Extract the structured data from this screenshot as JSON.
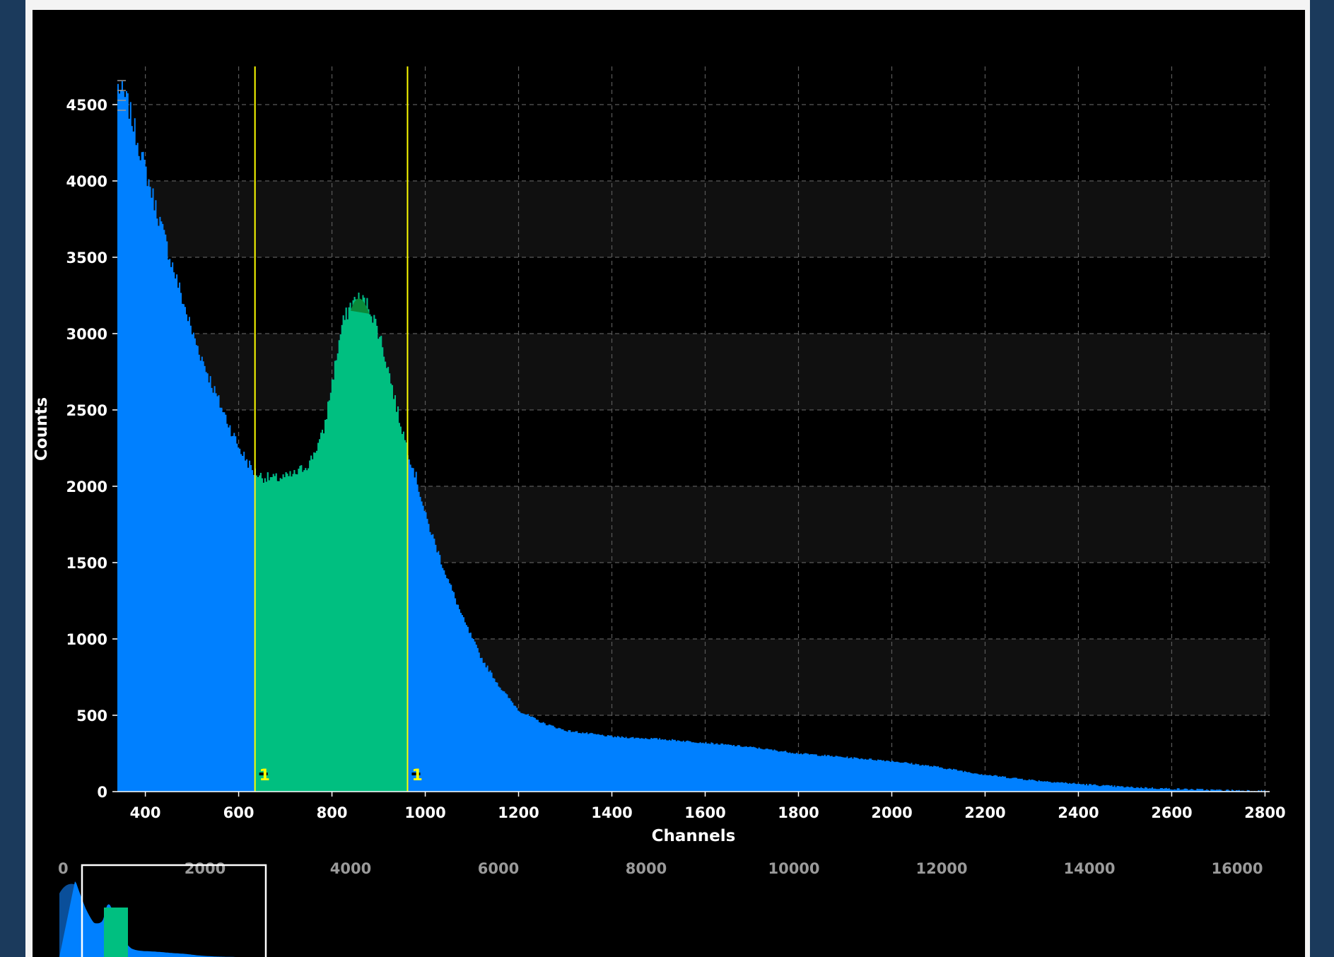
{
  "chart_data": {
    "type": "area",
    "xlabel": "Channels",
    "ylabel": "Counts",
    "xlim": [
      340,
      2810
    ],
    "ylim": [
      0,
      4750
    ],
    "x_ticks": [
      400,
      600,
      800,
      1000,
      1200,
      1400,
      1600,
      1800,
      2000,
      2200,
      2400,
      2600,
      2800
    ],
    "y_ticks": [
      0,
      500,
      1000,
      1500,
      2000,
      2500,
      3000,
      3500,
      4000,
      4500
    ],
    "grid": true,
    "grid_style": "dashed",
    "series": [
      {
        "color": "#0080ff",
        "x": [
          340,
          360,
          400,
          450,
          500,
          550,
          600,
          630,
          650,
          680,
          700,
          720,
          750,
          780,
          800,
          820,
          840,
          860,
          880,
          900,
          920,
          940,
          960,
          980,
          1000,
          1040,
          1080,
          1120,
          1160,
          1200,
          1250,
          1300,
          1400,
          1500,
          1600,
          1700,
          1800,
          1900,
          2000,
          2100,
          2200,
          2300,
          2400,
          2500,
          2600,
          2700,
          2800
        ],
        "y": [
          4620,
          4520,
          4060,
          3520,
          3000,
          2600,
          2250,
          2100,
          2060,
          2050,
          2060,
          2080,
          2150,
          2350,
          2700,
          3050,
          3200,
          3230,
          3170,
          3000,
          2760,
          2480,
          2250,
          2050,
          1800,
          1450,
          1130,
          870,
          680,
          530,
          450,
          400,
          360,
          345,
          320,
          290,
          250,
          225,
          200,
          160,
          110,
          75,
          50,
          30,
          18,
          10,
          5
        ]
      }
    ],
    "region": {
      "name": "1",
      "color": "#00bf80",
      "x_start": 635,
      "x_end": 962
    },
    "markers": [
      {
        "label": "1",
        "x": 635
      },
      {
        "label": "1",
        "x": 962
      }
    ],
    "overview": {
      "x_ticks": [
        0,
        2000,
        4000,
        6000,
        8000,
        10000,
        12000,
        14000,
        16000
      ],
      "x_range": [
        0,
        16000
      ],
      "window": [
        340,
        2810
      ]
    }
  }
}
